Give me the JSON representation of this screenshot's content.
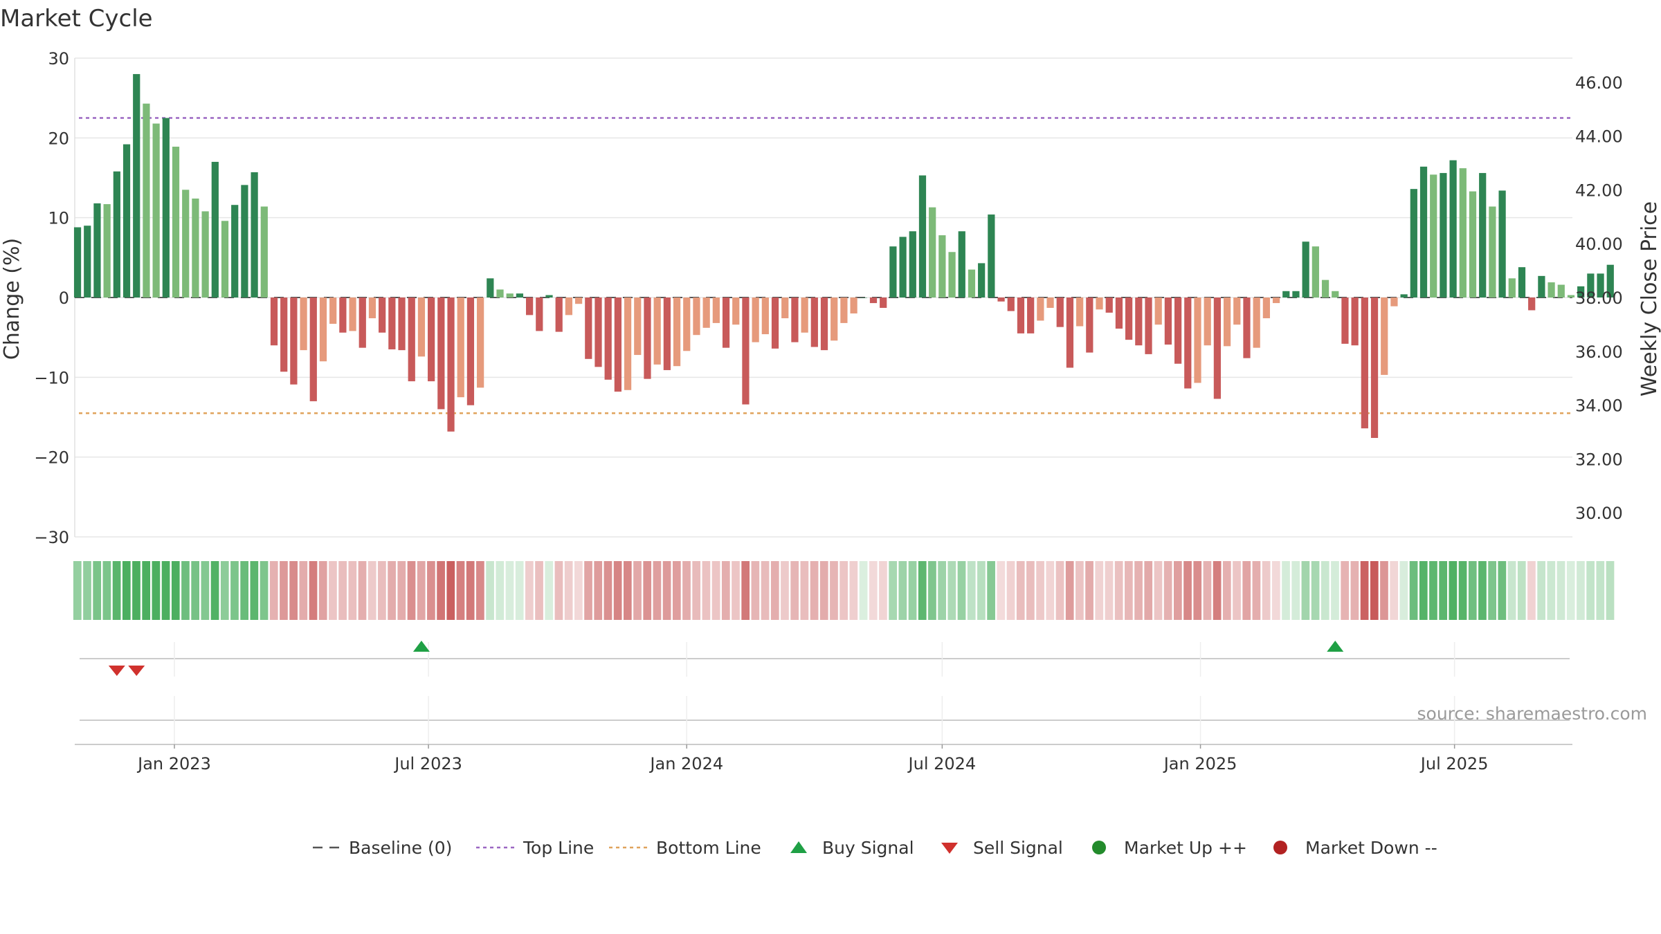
{
  "chart_data": {
    "type": "bar",
    "title": "Market Cycle",
    "ylabel": "Change (%)",
    "y2label": "Weekly Close Price",
    "ylim": [
      -30,
      30
    ],
    "yticks": [
      30,
      20,
      10,
      0,
      -10,
      -20,
      -30
    ],
    "ytick_labels": [
      "30",
      "20",
      "10",
      "0",
      "−10",
      "−20",
      "−30"
    ],
    "y2lim": [
      29.1,
      46.9
    ],
    "y2ticks": [
      46,
      44,
      42,
      40,
      38,
      36,
      34,
      32,
      30
    ],
    "y2tick_labels": [
      "46.00",
      "44.00",
      "42.00",
      "40.00",
      "38.00",
      "36.00",
      "34.00",
      "32.00",
      "30.00"
    ],
    "x_start": "2022-10-24",
    "xlim": [
      "2022-10-22",
      "2025-09-23"
    ],
    "xticks": [
      "2023-01-01",
      "2023-07-01",
      "2024-01-01",
      "2024-07-01",
      "2025-01-01",
      "2025-07-01"
    ],
    "xtick_labels": [
      "Jan 2023",
      "Jul 2023",
      "Jan 2024",
      "Jul 2024",
      "Jan 2025",
      "Jul 2025"
    ],
    "top_line": 22.5,
    "bottom_line": -14.5,
    "baseline": 0,
    "grid": true,
    "legend_position": "bottom-center",
    "source": "source: sharemaestro.com",
    "colors": {
      "up_strong": "#2e8553",
      "up_weak": "#7dba78",
      "down_strong": "#c85a5a",
      "down_weak": "#e69a7c",
      "top_line": "#9b67c2",
      "bottom_line": "#e0a35c",
      "baseline": "#555555",
      "buy": "#1fa045",
      "sell": "#d0312d",
      "market_up": "#238b2c",
      "market_down": "#b22222",
      "heat_green": "#4caf60",
      "heat_red": "#c85a5a"
    },
    "values": [
      8.8,
      9.0,
      11.8,
      11.7,
      15.8,
      19.2,
      28.0,
      24.3,
      21.8,
      22.5,
      18.9,
      13.5,
      12.4,
      10.8,
      17.0,
      9.6,
      11.6,
      14.1,
      15.7,
      11.4,
      -6.0,
      -9.3,
      -10.9,
      -6.6,
      -13.0,
      -8.0,
      -3.3,
      -4.4,
      -4.2,
      -6.3,
      -2.6,
      -4.4,
      -6.5,
      -6.6,
      -10.5,
      -7.4,
      -10.5,
      -14.0,
      -16.8,
      -12.5,
      -13.5,
      -11.3,
      2.4,
      1.0,
      0.5,
      0.5,
      -2.2,
      -4.2,
      0.3,
      -4.3,
      -2.2,
      -0.8,
      -7.7,
      -8.7,
      -10.3,
      -11.8,
      -11.6,
      -7.2,
      -10.2,
      -8.4,
      -9.1,
      -8.6,
      -6.7,
      -4.7,
      -3.8,
      -3.2,
      -6.3,
      -3.4,
      -13.4,
      -5.6,
      -4.6,
      -6.4,
      -2.6,
      -5.6,
      -4.4,
      -6.2,
      -6.6,
      -5.4,
      -3.2,
      -2.0,
      0.0,
      -0.7,
      -1.3,
      6.4,
      7.6,
      8.3,
      15.3,
      11.3,
      7.8,
      5.7,
      8.3,
      3.5,
      4.3,
      10.4,
      -0.5,
      -1.7,
      -4.5,
      -4.5,
      -2.9,
      -1.3,
      -3.7,
      -8.8,
      -3.6,
      -6.9,
      -1.5,
      -1.9,
      -3.9,
      -5.3,
      -6.0,
      -7.1,
      -3.4,
      -5.9,
      -8.3,
      -11.4,
      -10.7,
      -6.0,
      -12.7,
      -6.1,
      -3.4,
      -7.6,
      -6.3,
      -2.6,
      -0.7,
      0.8,
      0.8,
      7.0,
      6.4,
      2.2,
      0.8,
      -5.8,
      -6.0,
      -16.4,
      -17.6,
      -9.7,
      -1.1,
      0.4,
      13.6,
      16.4,
      15.4,
      15.6,
      17.2,
      16.2,
      13.3,
      15.6,
      11.4,
      13.4,
      2.4,
      3.8,
      -1.6,
      2.7,
      1.9,
      1.6,
      0.3,
      1.4,
      3.0,
      3.0,
      4.1
    ],
    "signals": {
      "buy": [
        "2023-06-26",
        "2025-04-07"
      ],
      "sell": [
        "2022-11-21",
        "2022-12-05"
      ]
    },
    "legend": [
      "Baseline (0)",
      "Top Line",
      "Bottom Line",
      "Buy Signal",
      "Sell Signal",
      "Market Up ++",
      "Market Down --"
    ]
  }
}
